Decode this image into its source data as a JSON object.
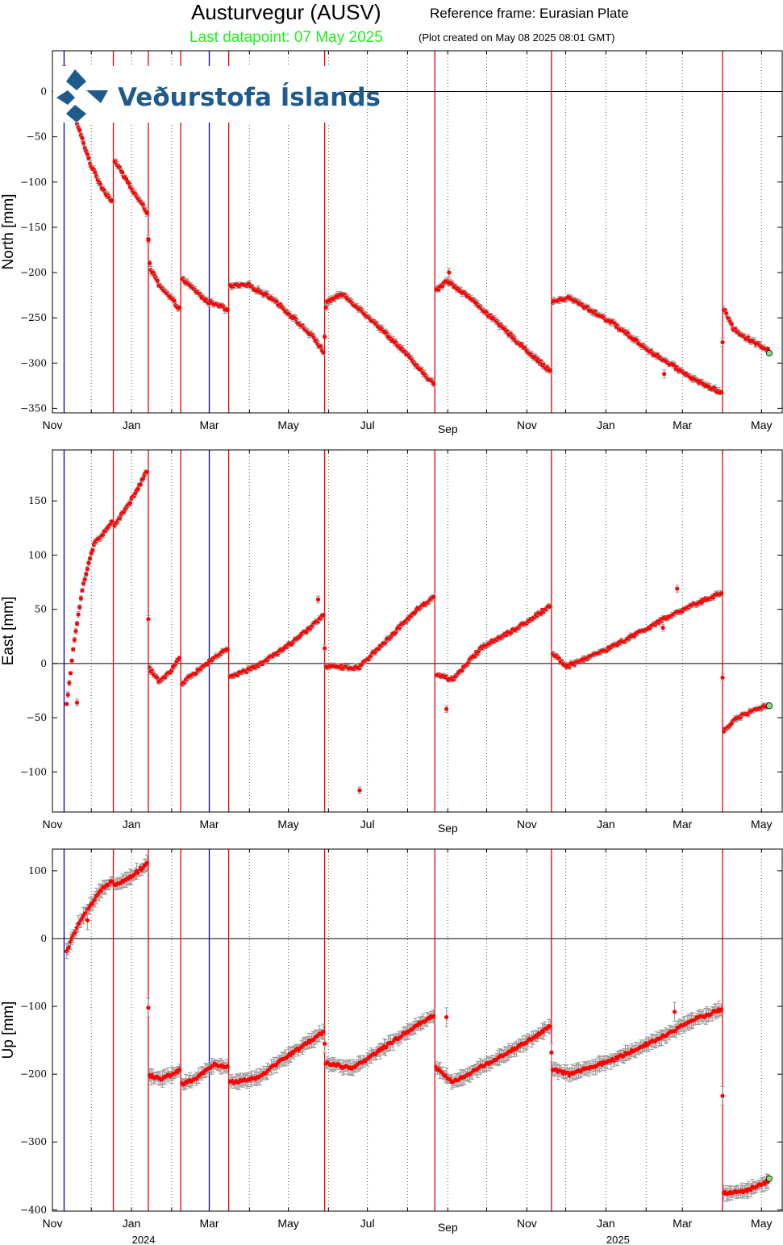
{
  "header": {
    "title": "Austurvegur (AUSV)",
    "reference_frame": "Reference frame: Eurasian Plate",
    "last_datapoint": "Last datapoint: 07 May 2025",
    "plot_created": "(Plot created on May 08 2025 08:01 GMT)"
  },
  "logo": {
    "text": "Veðurstofa Íslands",
    "color": "#1e5a8c"
  },
  "colors": {
    "points": "#ff0000",
    "last_point": "#7fe37f",
    "title_highlight": "#22ee22",
    "event_red": "#ee0000",
    "event_blue": "#0000bb",
    "error_bars": "#999999",
    "grid": "#555555"
  },
  "x_axis": {
    "start": "2023-11-01",
    "end": "2025-05-17",
    "ticks": [
      {
        "date": "2023-11-01",
        "label": "Nov"
      },
      {
        "date": "2024-01-01",
        "label": "Jan"
      },
      {
        "date": "2024-03-01",
        "label": "Mar"
      },
      {
        "date": "2024-05-01",
        "label": "May"
      },
      {
        "date": "2024-07-01",
        "label": "Jul"
      },
      {
        "date": "2024-09-01",
        "label": "Sep"
      },
      {
        "date": "2024-11-01",
        "label": "Nov"
      },
      {
        "date": "2025-01-01",
        "label": "Jan"
      },
      {
        "date": "2025-03-01",
        "label": "Mar"
      },
      {
        "date": "2025-05-01",
        "label": "May"
      }
    ],
    "years": [
      {
        "date": "2024-01-01",
        "label": "2024"
      },
      {
        "date": "2025-01-01",
        "label": "2025"
      }
    ],
    "minor_ticks": "monthly",
    "grid": "dotted"
  },
  "events": {
    "red": [
      "2023-12-18",
      "2024-01-14",
      "2024-02-08",
      "2024-03-16",
      "2024-05-29",
      "2024-08-22",
      "2024-11-20",
      "2025-04-01"
    ],
    "blue": [
      "2023-11-10",
      "2024-03-01"
    ]
  },
  "chart_data": [
    {
      "type": "scatter",
      "ylabel": "North [mm]",
      "ylim": [
        -355,
        45
      ],
      "yticks": [
        0,
        -50,
        -100,
        -150,
        -200,
        -250,
        -300,
        -350
      ],
      "zero_line": true,
      "segments": [
        {
          "from": "2023-11-10",
          "to": "2023-12-17",
          "anchors": [
            [
              0,
              26
            ],
            [
              0.12,
              -8
            ],
            [
              0.3,
              -40
            ],
            [
              0.55,
              -80
            ],
            [
              0.8,
              -107
            ],
            [
              1,
              -121
            ]
          ]
        },
        {
          "from": "2023-12-19",
          "to": "2024-01-13",
          "anchors": [
            [
              0,
              -76
            ],
            [
              0.4,
              -100
            ],
            [
              0.7,
              -117
            ],
            [
              1,
              -133
            ]
          ]
        },
        {
          "from": "2024-01-14",
          "to": "2024-01-15",
          "anchors": [
            [
              0,
              -163
            ],
            [
              1,
              -190
            ]
          ]
        },
        {
          "from": "2024-01-16",
          "to": "2024-02-07",
          "anchors": [
            [
              0,
              -196
            ],
            [
              0.3,
              -215
            ],
            [
              0.7,
              -228
            ],
            [
              1,
              -240
            ]
          ]
        },
        {
          "from": "2024-02-09",
          "to": "2024-03-15",
          "anchors": [
            [
              0,
              -207
            ],
            [
              0.3,
              -220
            ],
            [
              0.55,
              -232
            ],
            [
              0.8,
              -235
            ],
            [
              1,
              -242
            ]
          ]
        },
        {
          "from": "2024-03-17",
          "to": "2024-05-28",
          "anchors": [
            [
              0,
              -215
            ],
            [
              0.2,
              -214
            ],
            [
              0.45,
              -228
            ],
            [
              0.7,
              -252
            ],
            [
              0.9,
              -272
            ],
            [
              1,
              -287
            ]
          ]
        },
        {
          "from": "2024-05-29",
          "to": "2024-05-30",
          "anchors": [
            [
              0,
              -271
            ],
            [
              1,
              -240
            ]
          ]
        },
        {
          "from": "2024-05-31",
          "to": "2024-08-21",
          "anchors": [
            [
              0,
              -232
            ],
            [
              0.15,
              -224
            ],
            [
              0.4,
              -250
            ],
            [
              0.7,
              -284
            ],
            [
              0.9,
              -311
            ],
            [
              1,
              -322
            ]
          ]
        },
        {
          "from": "2024-08-23",
          "to": "2024-11-19",
          "anchors": [
            [
              0,
              -220
            ],
            [
              0.1,
              -209
            ],
            [
              0.3,
              -228
            ],
            [
              0.6,
              -263
            ],
            [
              0.85,
              -292
            ],
            [
              1,
              -309
            ]
          ]
        },
        {
          "from": "2024-11-21",
          "to": "2025-03-31",
          "anchors": [
            [
              0,
              -232
            ],
            [
              0.1,
              -228
            ],
            [
              0.35,
              -255
            ],
            [
              0.6,
              -290
            ],
            [
              0.85,
              -319
            ],
            [
              1,
              -333
            ]
          ]
        },
        {
          "from": "2025-04-02",
          "to": "2025-05-06",
          "anchors": [
            [
              0,
              -240
            ],
            [
              0.2,
              -261
            ],
            [
              0.5,
              -272
            ],
            [
              1,
              -285
            ]
          ]
        }
      ],
      "outliers": [
        {
          "date": "2024-01-14",
          "value": -163
        },
        {
          "date": "2024-09-02",
          "value": -200
        },
        {
          "date": "2025-02-15",
          "value": -312
        },
        {
          "date": "2025-04-01",
          "value": -277
        }
      ],
      "last_point": {
        "date": "2025-05-07",
        "value": -289
      }
    },
    {
      "type": "scatter",
      "ylabel": "East [mm]",
      "ylim": [
        -137,
        197
      ],
      "yticks": [
        150,
        100,
        50,
        0,
        -50,
        -100
      ],
      "zero_line": true,
      "segments": [
        {
          "from": "2023-11-12",
          "to": "2023-12-17",
          "anchors": [
            [
              0,
              -38
            ],
            [
              0.15,
              15
            ],
            [
              0.35,
              70
            ],
            [
              0.6,
              110
            ],
            [
              1,
              130
            ]
          ]
        },
        {
          "from": "2023-12-19",
          "to": "2024-01-13",
          "anchors": [
            [
              0,
              128
            ],
            [
              0.4,
              145
            ],
            [
              0.75,
              163
            ],
            [
              1,
              178
            ]
          ]
        },
        {
          "from": "2024-01-15",
          "to": "2024-02-07",
          "anchors": [
            [
              0,
              -5
            ],
            [
              0.3,
              -16
            ],
            [
              0.7,
              -8
            ],
            [
              1,
              5
            ]
          ]
        },
        {
          "from": "2024-02-09",
          "to": "2024-03-15",
          "anchors": [
            [
              0,
              -18
            ],
            [
              0.4,
              -5
            ],
            [
              0.7,
              5
            ],
            [
              1,
              13
            ]
          ]
        },
        {
          "from": "2024-03-17",
          "to": "2024-05-28",
          "anchors": [
            [
              0,
              -13
            ],
            [
              0.3,
              -2
            ],
            [
              0.6,
              15
            ],
            [
              0.85,
              32
            ],
            [
              1,
              45
            ]
          ]
        },
        {
          "from": "2024-05-30",
          "to": "2024-08-21",
          "anchors": [
            [
              0,
              -3
            ],
            [
              0.3,
              -4
            ],
            [
              0.55,
              20
            ],
            [
              0.85,
              50
            ],
            [
              1,
              61
            ]
          ]
        },
        {
          "from": "2024-08-23",
          "to": "2024-11-19",
          "anchors": [
            [
              0,
              -10
            ],
            [
              0.15,
              -15
            ],
            [
              0.4,
              15
            ],
            [
              0.75,
              35
            ],
            [
              1,
              53
            ]
          ]
        },
        {
          "from": "2024-11-21",
          "to": "2025-03-31",
          "anchors": [
            [
              0,
              10
            ],
            [
              0.08,
              -3
            ],
            [
              0.35,
              15
            ],
            [
              0.65,
              40
            ],
            [
              0.85,
              55
            ],
            [
              1,
              65
            ]
          ]
        },
        {
          "from": "2025-04-02",
          "to": "2025-05-06",
          "anchors": [
            [
              0,
              -62
            ],
            [
              0.3,
              -50
            ],
            [
              0.6,
              -45
            ],
            [
              1,
              -38
            ]
          ]
        }
      ],
      "outliers": [
        {
          "date": "2023-11-20",
          "value": -36
        },
        {
          "date": "2024-01-14",
          "value": 41
        },
        {
          "date": "2024-05-24",
          "value": 59
        },
        {
          "date": "2024-05-29",
          "value": 14
        },
        {
          "date": "2024-06-25",
          "value": -117
        },
        {
          "date": "2024-08-31",
          "value": -42
        },
        {
          "date": "2025-02-14",
          "value": 33
        },
        {
          "date": "2025-02-25",
          "value": 69
        },
        {
          "date": "2025-04-01",
          "value": -13
        }
      ],
      "last_point": {
        "date": "2025-05-07",
        "value": -39
      }
    },
    {
      "type": "scatter",
      "ylabel": "Up [mm]",
      "ylim": [
        -402,
        132
      ],
      "yticks": [
        100,
        0,
        -100,
        -200,
        -300,
        -400
      ],
      "zero_line": true,
      "segments": [
        {
          "from": "2023-11-12",
          "to": "2023-12-17",
          "anchors": [
            [
              0,
              -20
            ],
            [
              0.25,
              20
            ],
            [
              0.55,
              50
            ],
            [
              0.8,
              75
            ],
            [
              1,
              85
            ]
          ]
        },
        {
          "from": "2023-12-19",
          "to": "2024-01-13",
          "anchors": [
            [
              0,
              80
            ],
            [
              0.4,
              88
            ],
            [
              0.75,
              100
            ],
            [
              1,
              110
            ]
          ]
        },
        {
          "from": "2024-01-15",
          "to": "2024-02-07",
          "anchors": [
            [
              0,
              -202
            ],
            [
              0.4,
              -207
            ],
            [
              1,
              -195
            ]
          ]
        },
        {
          "from": "2024-02-09",
          "to": "2024-03-15",
          "anchors": [
            [
              0,
              -215
            ],
            [
              0.35,
              -205
            ],
            [
              0.7,
              -186
            ],
            [
              1,
              -190
            ]
          ]
        },
        {
          "from": "2024-03-17",
          "to": "2024-05-28",
          "anchors": [
            [
              0,
              -212
            ],
            [
              0.3,
              -205
            ],
            [
              0.6,
              -175
            ],
            [
              0.85,
              -152
            ],
            [
              1,
              -138
            ]
          ]
        },
        {
          "from": "2024-05-30",
          "to": "2024-08-21",
          "anchors": [
            [
              0,
              -183
            ],
            [
              0.25,
              -192
            ],
            [
              0.5,
              -165
            ],
            [
              0.75,
              -138
            ],
            [
              1,
              -113
            ]
          ]
        },
        {
          "from": "2024-08-23",
          "to": "2024-11-19",
          "anchors": [
            [
              0,
              -190
            ],
            [
              0.15,
              -212
            ],
            [
              0.5,
              -180
            ],
            [
              0.8,
              -152
            ],
            [
              1,
              -130
            ]
          ]
        },
        {
          "from": "2024-11-21",
          "to": "2025-03-31",
          "anchors": [
            [
              0,
              -193
            ],
            [
              0.1,
              -200
            ],
            [
              0.35,
              -180
            ],
            [
              0.65,
              -145
            ],
            [
              0.85,
              -118
            ],
            [
              1,
              -105
            ]
          ]
        },
        {
          "from": "2025-04-02",
          "to": "2025-05-06",
          "anchors": [
            [
              0,
              -375
            ],
            [
              0.5,
              -372
            ],
            [
              1,
              -358
            ]
          ]
        }
      ],
      "outliers": [
        {
          "date": "2023-11-28",
          "value": 27
        },
        {
          "date": "2024-01-14",
          "value": -102
        },
        {
          "date": "2024-05-29",
          "value": -155
        },
        {
          "date": "2024-08-31",
          "value": -116
        },
        {
          "date": "2024-11-20",
          "value": -168
        },
        {
          "date": "2025-02-23",
          "value": -108
        },
        {
          "date": "2025-04-01",
          "value": -232
        }
      ],
      "last_point": {
        "date": "2025-05-07",
        "value": -354
      }
    }
  ]
}
